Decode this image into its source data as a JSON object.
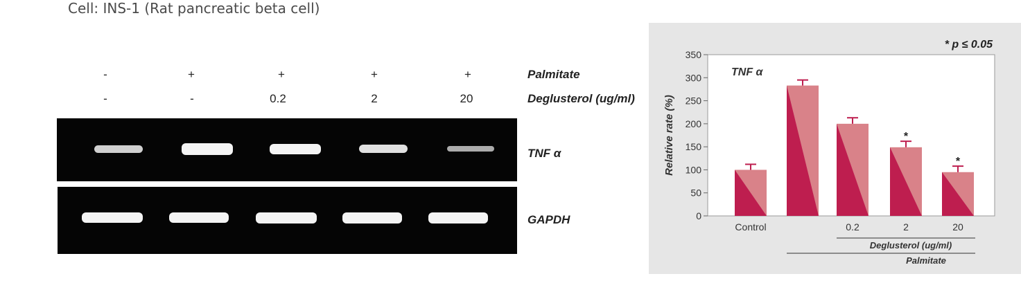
{
  "header": {
    "title": "Cell: INS-1 (Rat pancreatic beta cell)"
  },
  "gel": {
    "palmitate_label": "Palmitate",
    "deglusterol_label": "Deglusterol (ug/ml)",
    "tnf_label": "TNF α",
    "gapdh_label": "GAPDH",
    "palmitate_values": [
      "-",
      "+",
      "+",
      "+",
      "+"
    ],
    "deglusterol_values": [
      "-",
      "-",
      "0.2",
      "2",
      "20"
    ]
  },
  "chart_data": {
    "type": "bar",
    "title": "TNF α",
    "significance_note": "* p ≤ 0.05",
    "ylabel": "Relative rate (%)",
    "ylim": [
      0,
      350
    ],
    "yticks": [
      0,
      50,
      100,
      150,
      200,
      250,
      300,
      350
    ],
    "categories": [
      "Control",
      "",
      "0.2",
      "2",
      "20"
    ],
    "values": [
      100,
      283,
      200,
      149,
      95
    ],
    "errors": [
      12,
      12,
      13,
      13,
      13
    ],
    "significant": [
      false,
      false,
      false,
      true,
      true
    ],
    "group_labels": {
      "deglusterol": "Deglusterol (ug/ml)",
      "palmitate": "Palmitate"
    },
    "colors": {
      "bar_dark": "#be1e4f",
      "bar_light": "#d98289",
      "error_bar": "#be1e4f"
    }
  }
}
